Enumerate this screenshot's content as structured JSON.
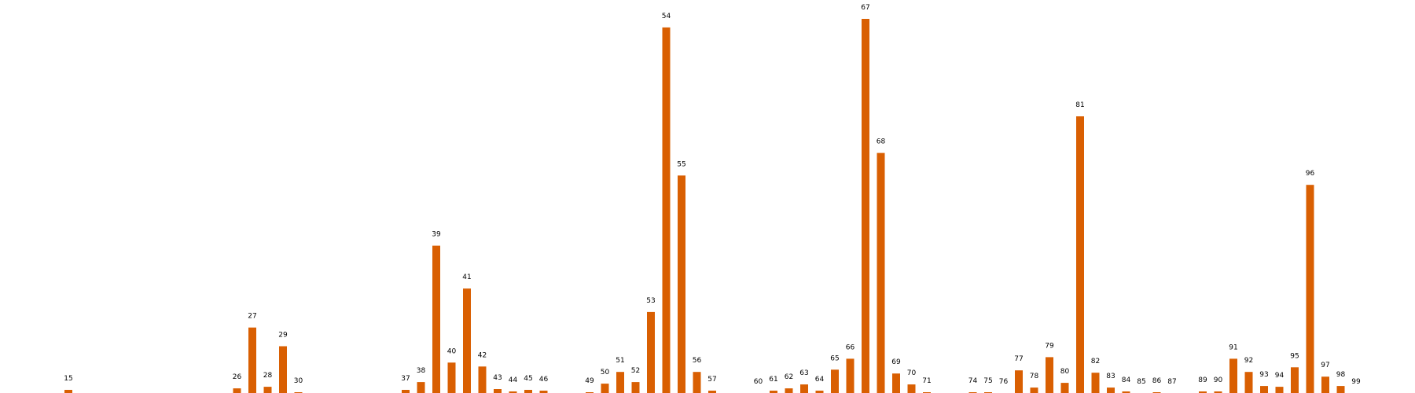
{
  "chart_data": {
    "type": "bar",
    "bar_color": "#d95f02",
    "ylim": [
      0,
      480
    ],
    "grid": false,
    "axes_visible": false,
    "categories": [
      "15",
      "26",
      "27",
      "28",
      "29",
      "30",
      "37",
      "38",
      "39",
      "40",
      "41",
      "42",
      "43",
      "44",
      "45",
      "46",
      "49",
      "50",
      "51",
      "52",
      "53",
      "54",
      "55",
      "56",
      "57",
      "60",
      "61",
      "62",
      "63",
      "64",
      "65",
      "66",
      "67",
      "68",
      "69",
      "70",
      "71",
      "74",
      "75",
      "76",
      "77",
      "78",
      "79",
      "80",
      "81",
      "82",
      "83",
      "84",
      "85",
      "86",
      "87",
      "89",
      "90",
      "91",
      "92",
      "93",
      "94",
      "95",
      "96",
      "97",
      "98",
      "99"
    ],
    "x": [
      15,
      26,
      27,
      28,
      29,
      30,
      37,
      38,
      39,
      40,
      41,
      42,
      43,
      44,
      45,
      46,
      49,
      50,
      51,
      52,
      53,
      54,
      55,
      56,
      57,
      60,
      61,
      62,
      63,
      64,
      65,
      66,
      67,
      68,
      69,
      70,
      71,
      74,
      75,
      76,
      77,
      78,
      79,
      80,
      81,
      82,
      83,
      84,
      85,
      86,
      87,
      89,
      90,
      91,
      92,
      93,
      94,
      95,
      96,
      97,
      98,
      99
    ],
    "values": [
      4,
      6,
      84,
      8,
      60,
      1,
      4,
      14,
      189,
      39,
      134,
      34,
      5,
      2,
      4,
      3,
      1,
      12,
      27,
      14,
      104,
      469,
      279,
      27,
      3,
      0,
      3,
      6,
      11,
      3,
      30,
      44,
      480,
      308,
      25,
      11,
      1,
      1,
      1,
      0,
      29,
      7,
      46,
      13,
      355,
      26,
      7,
      2,
      0,
      1,
      0,
      2,
      2,
      44,
      27,
      9,
      8,
      33,
      267,
      21,
      9,
      0
    ]
  }
}
